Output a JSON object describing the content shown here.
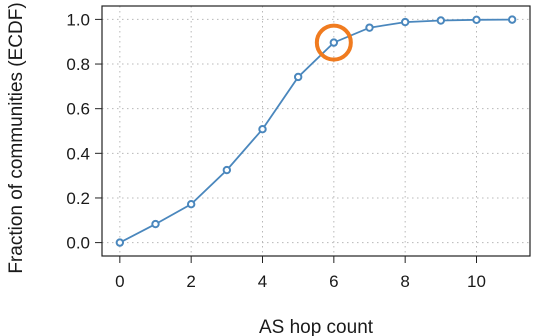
{
  "chart_data": {
    "type": "line",
    "title": "",
    "xlabel": "AS hop count",
    "ylabel": "Fraction of communities (ECDF)",
    "xlim": [
      -0.5,
      11.5
    ],
    "ylim": [
      -0.06,
      1.06
    ],
    "x_ticks": [
      0,
      2,
      4,
      6,
      8,
      10
    ],
    "y_ticks": [
      0.0,
      0.2,
      0.4,
      0.6,
      0.8,
      1.0
    ],
    "y_tick_labels": [
      "0.0",
      "0.2",
      "0.4",
      "0.6",
      "0.8",
      "1.0"
    ],
    "grid": true,
    "series": [
      {
        "x": [
          0,
          1,
          2,
          3,
          4,
          5,
          6,
          7,
          8,
          9,
          10,
          11
        ],
        "values": [
          0.0,
          0.083,
          0.172,
          0.325,
          0.508,
          0.742,
          0.896,
          0.963,
          0.988,
          0.995,
          0.998,
          0.999
        ],
        "color": "#4a87bd"
      }
    ],
    "highlight": {
      "x": 6,
      "y": 0.896,
      "color": "#f07b1f"
    }
  }
}
